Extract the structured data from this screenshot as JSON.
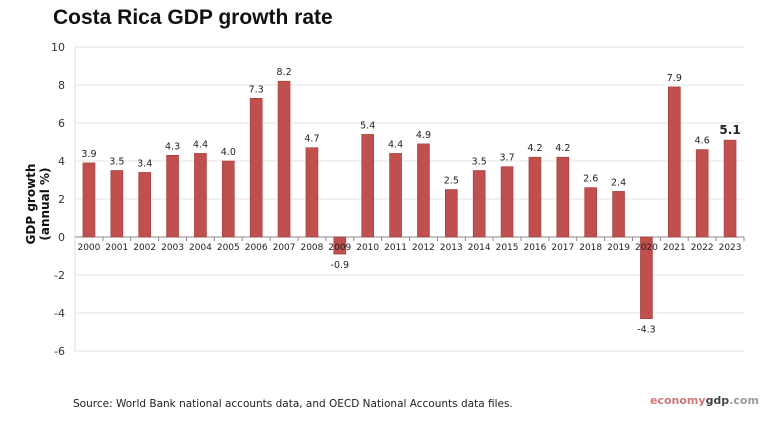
{
  "chart_data": {
    "type": "bar",
    "title": "Costa Rica GDP growth rate",
    "ylabel": "GDP growth (annual %)",
    "xlabel": "",
    "ylim": [
      -6,
      10
    ],
    "yticks": [
      10,
      8,
      6,
      4,
      2,
      0,
      -2,
      -4,
      -6
    ],
    "grid": true,
    "categories": [
      "2000",
      "2001",
      "2002",
      "2003",
      "2004",
      "2005",
      "2006",
      "2007",
      "2008",
      "2009",
      "2010",
      "2011",
      "2012",
      "2013",
      "2014",
      "2015",
      "2016",
      "2017",
      "2018",
      "2019",
      "2020",
      "2021",
      "2022",
      "2023"
    ],
    "values": [
      3.9,
      3.5,
      3.4,
      4.3,
      4.4,
      4.0,
      7.3,
      8.2,
      4.7,
      -0.9,
      5.4,
      4.4,
      4.9,
      2.5,
      3.5,
      3.7,
      4.2,
      4.2,
      2.6,
      2.4,
      -4.3,
      7.9,
      4.6,
      5.1
    ],
    "data_labels": [
      "3.9",
      "3.5",
      "3.4",
      "4.3",
      "4.4",
      "4.0",
      "7.3",
      "8.2",
      "4.7",
      "-0.9",
      "5.4",
      "4.4",
      "4.9",
      "2.5",
      "3.5",
      "3.7",
      "4.2",
      "4.2",
      "2.6",
      "2.4",
      "-4.3",
      "7.9",
      "4.6",
      "5.1"
    ],
    "bar_color": "#c0504d",
    "highlight_last_label": true
  },
  "source": "Source:  World Bank national accounts data, and OECD National Accounts data files.",
  "brand": {
    "part1": "economy",
    "part2": "gdp",
    "part3": ".com"
  }
}
